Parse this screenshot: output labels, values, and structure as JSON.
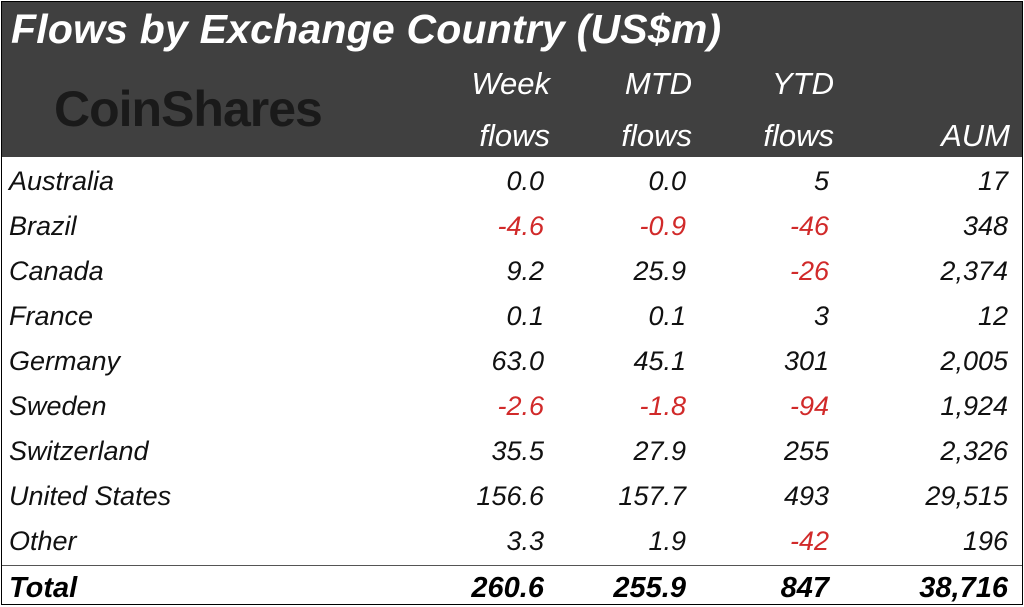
{
  "title": "Flows by Exchange Country (US$m)",
  "logo_text": "CoinShares",
  "columns": {
    "week": [
      "Week",
      "flows"
    ],
    "mtd": [
      "MTD",
      "flows"
    ],
    "ytd": [
      "YTD",
      "flows"
    ],
    "aum": [
      "",
      "AUM"
    ]
  },
  "colors": {
    "header_bg": "#404040",
    "negative": "#d12a2a",
    "text": "#111111"
  },
  "chart_data": {
    "type": "table",
    "title": "Flows by Exchange Country (US$m)",
    "columns": [
      "Week flows",
      "MTD flows",
      "YTD flows",
      "AUM"
    ],
    "rows": [
      {
        "country": "Australia",
        "week": "0.0",
        "mtd": "0.0",
        "ytd": "5",
        "aum": "17"
      },
      {
        "country": "Brazil",
        "week": "-4.6",
        "mtd": "-0.9",
        "ytd": "-46",
        "aum": "348"
      },
      {
        "country": "Canada",
        "week": "9.2",
        "mtd": "25.9",
        "ytd": "-26",
        "aum": "2,374"
      },
      {
        "country": "France",
        "week": "0.1",
        "mtd": "0.1",
        "ytd": "3",
        "aum": "12"
      },
      {
        "country": "Germany",
        "week": "63.0",
        "mtd": "45.1",
        "ytd": "301",
        "aum": "2,005"
      },
      {
        "country": "Sweden",
        "week": "-2.6",
        "mtd": "-1.8",
        "ytd": "-94",
        "aum": "1,924"
      },
      {
        "country": "Switzerland",
        "week": "35.5",
        "mtd": "27.9",
        "ytd": "255",
        "aum": "2,326"
      },
      {
        "country": "United States",
        "week": "156.6",
        "mtd": "157.7",
        "ytd": "493",
        "aum": "29,515"
      },
      {
        "country": "Other",
        "week": "3.3",
        "mtd": "1.9",
        "ytd": "-42",
        "aum": "196"
      }
    ],
    "total": {
      "country": "Total",
      "week": "260.6",
      "mtd": "255.9",
      "ytd": "847",
      "aum": "38,716"
    }
  }
}
